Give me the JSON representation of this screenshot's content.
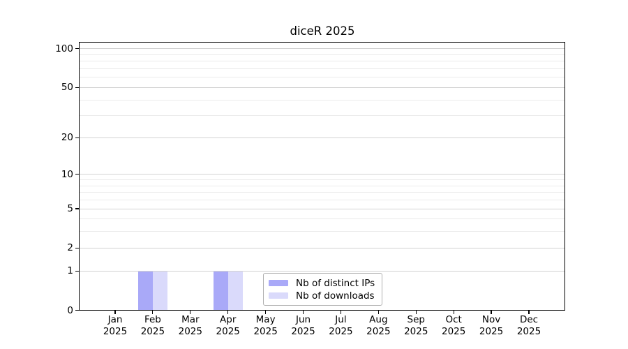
{
  "chart_data": {
    "type": "bar",
    "title": "diceR 2025",
    "x_categories": [
      {
        "month": "Jan",
        "year": "2025"
      },
      {
        "month": "Feb",
        "year": "2025"
      },
      {
        "month": "Mar",
        "year": "2025"
      },
      {
        "month": "Apr",
        "year": "2025"
      },
      {
        "month": "May",
        "year": "2025"
      },
      {
        "month": "Jun",
        "year": "2025"
      },
      {
        "month": "Jul",
        "year": "2025"
      },
      {
        "month": "Aug",
        "year": "2025"
      },
      {
        "month": "Sep",
        "year": "2025"
      },
      {
        "month": "Oct",
        "year": "2025"
      },
      {
        "month": "Nov",
        "year": "2025"
      },
      {
        "month": "Dec",
        "year": "2025"
      }
    ],
    "series": [
      {
        "name": "Nb of distinct IPs",
        "key": "distinct-ips",
        "color": "#a9a9f8",
        "values": [
          0,
          1,
          0,
          1,
          0,
          0,
          0,
          0,
          0,
          0,
          0,
          0
        ]
      },
      {
        "name": "Nb of downloads",
        "key": "downloads",
        "color": "#dadafb",
        "values": [
          0,
          1,
          0,
          1,
          0,
          0,
          0,
          0,
          0,
          0,
          0,
          0
        ]
      }
    ],
    "y_axis": {
      "scale": "log1p",
      "ticks": [
        0,
        1,
        2,
        5,
        10,
        20,
        50,
        100
      ],
      "minor_ticks": [
        3,
        4,
        6,
        7,
        8,
        9,
        30,
        40,
        60,
        70,
        80,
        90
      ],
      "max": 113
    },
    "grid": {
      "enabled": true,
      "major_color": "#d2d2d2",
      "minor_color": "#ebebeb"
    },
    "legend": {
      "position": "lower center",
      "border_color": "#b0b0b0"
    },
    "colors": {
      "axis": "#000000",
      "text": "#000000",
      "background": "#ffffff"
    }
  }
}
